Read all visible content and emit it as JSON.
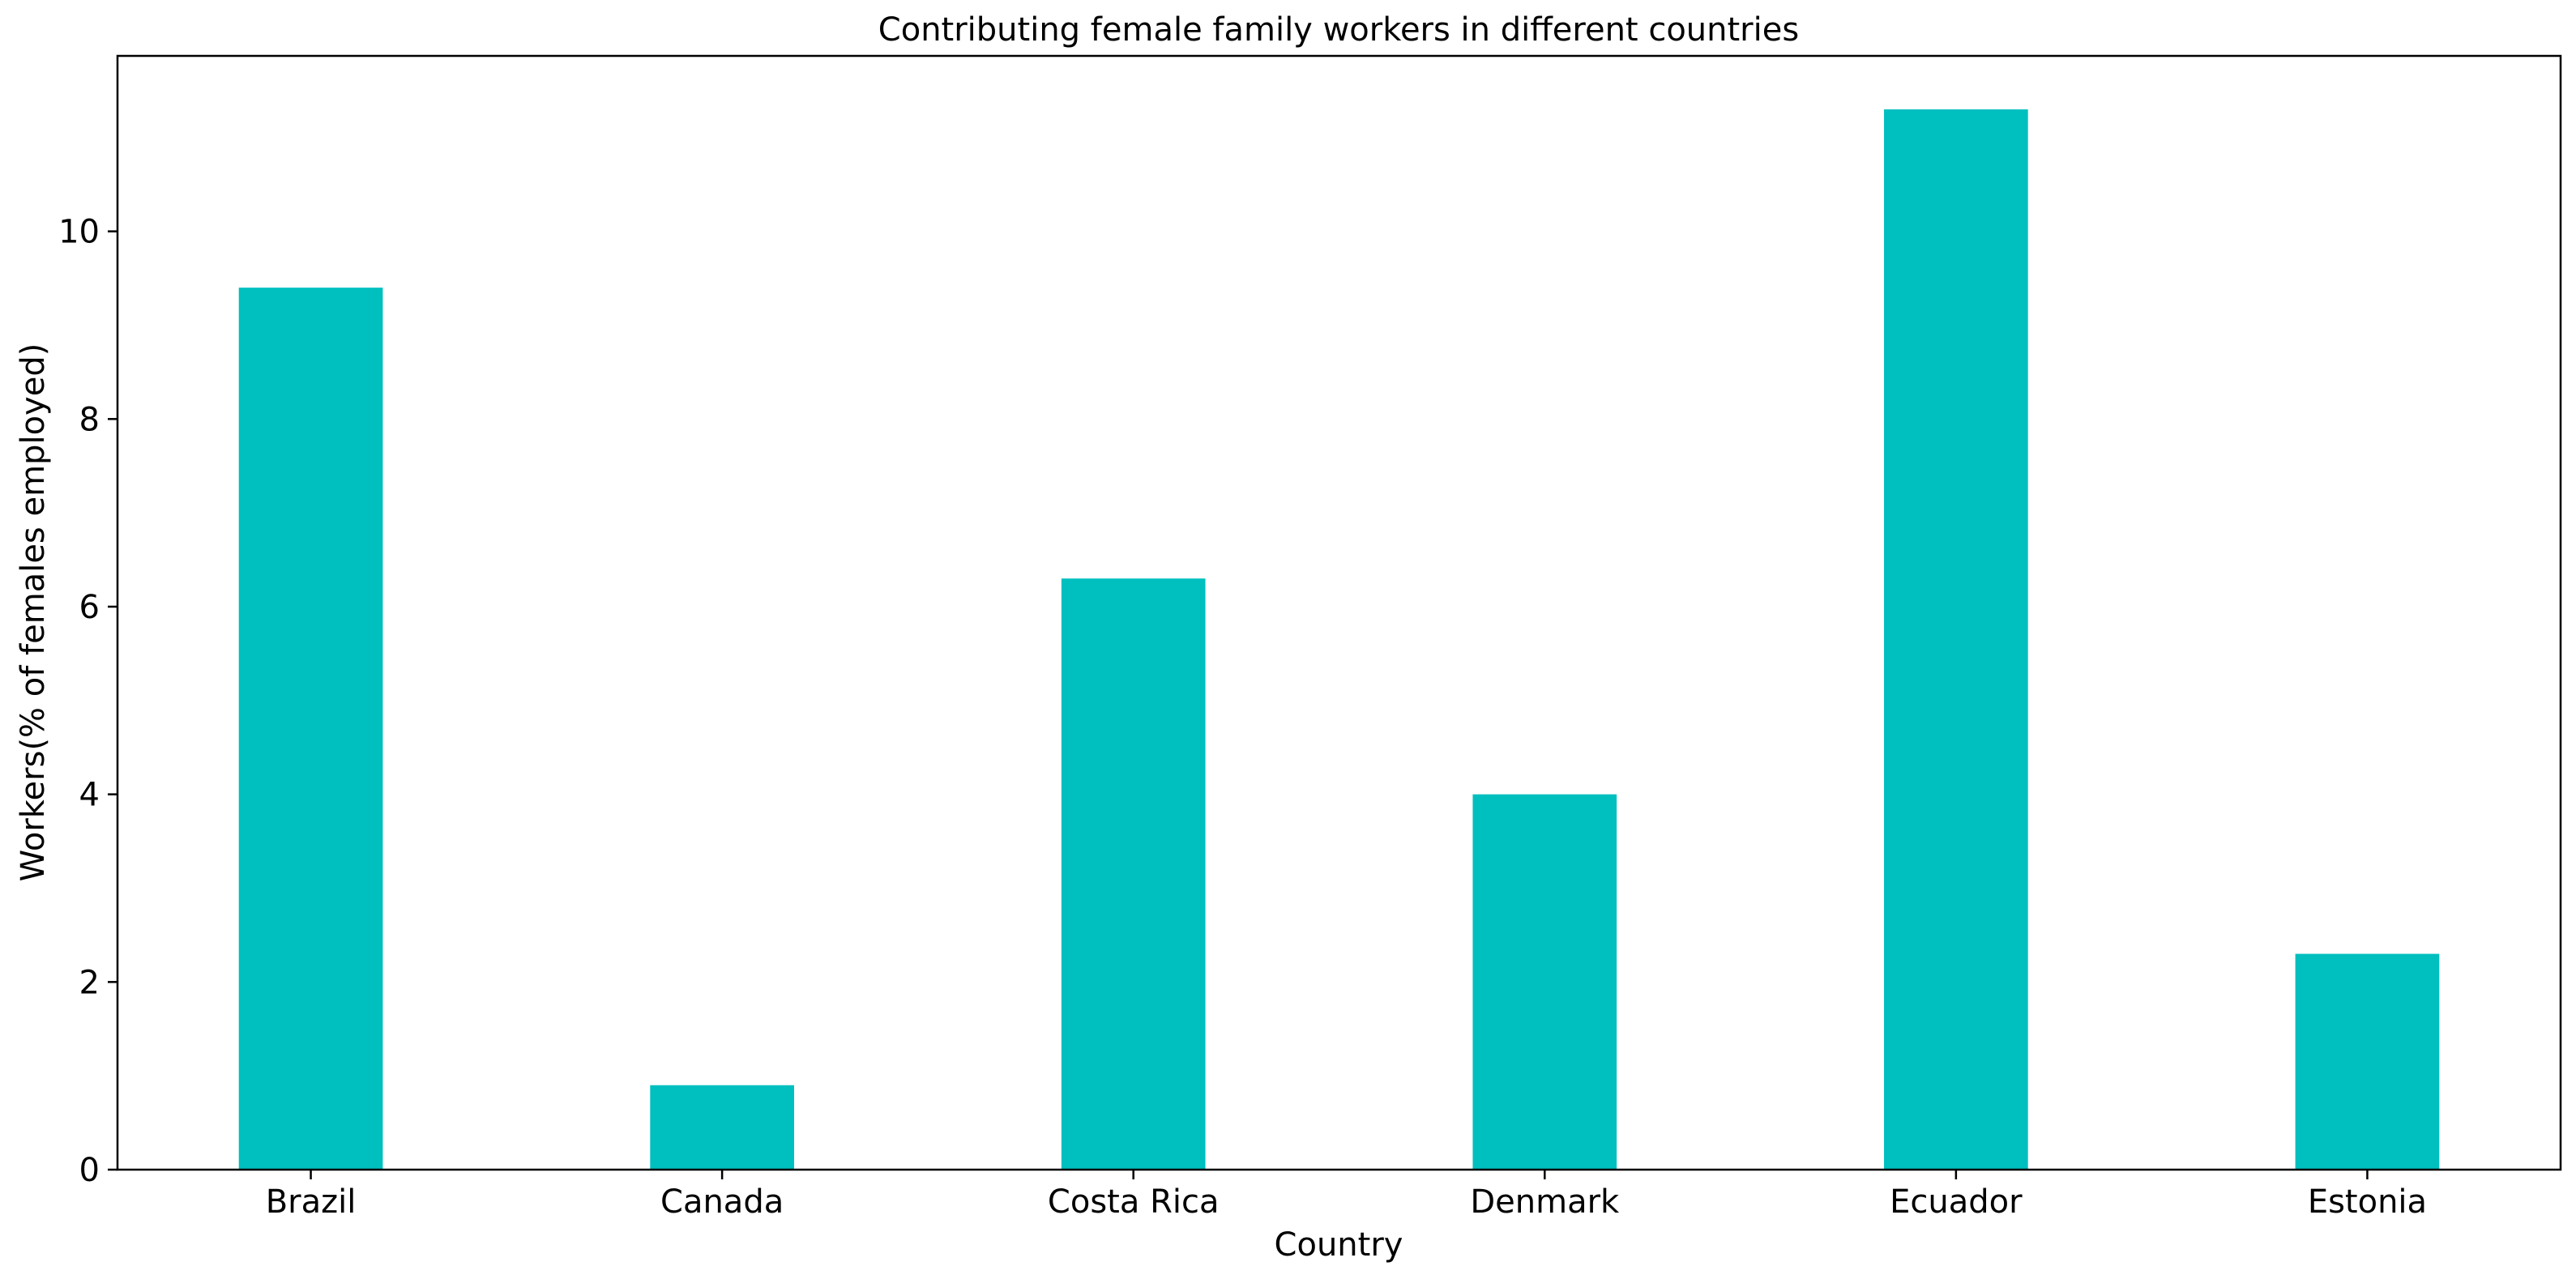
{
  "chart_data": {
    "type": "bar",
    "title": "Contributing female family workers in different countries",
    "xlabel": "Country",
    "ylabel": "Workers(% of females employed)",
    "categories": [
      "Brazil",
      "Canada",
      "Costa Rica",
      "Denmark",
      "Ecuador",
      "Estonia"
    ],
    "values": [
      9.4,
      0.9,
      6.3,
      4.0,
      11.3,
      2.3
    ],
    "ylim": [
      0,
      11.87
    ],
    "yticks": [
      0,
      2,
      4,
      6,
      8,
      10
    ],
    "ytick_labels": [
      "0",
      "2",
      "4",
      "6",
      "8",
      "10"
    ],
    "bar_color": "#00bfbf",
    "grid": false,
    "legend": "none"
  }
}
